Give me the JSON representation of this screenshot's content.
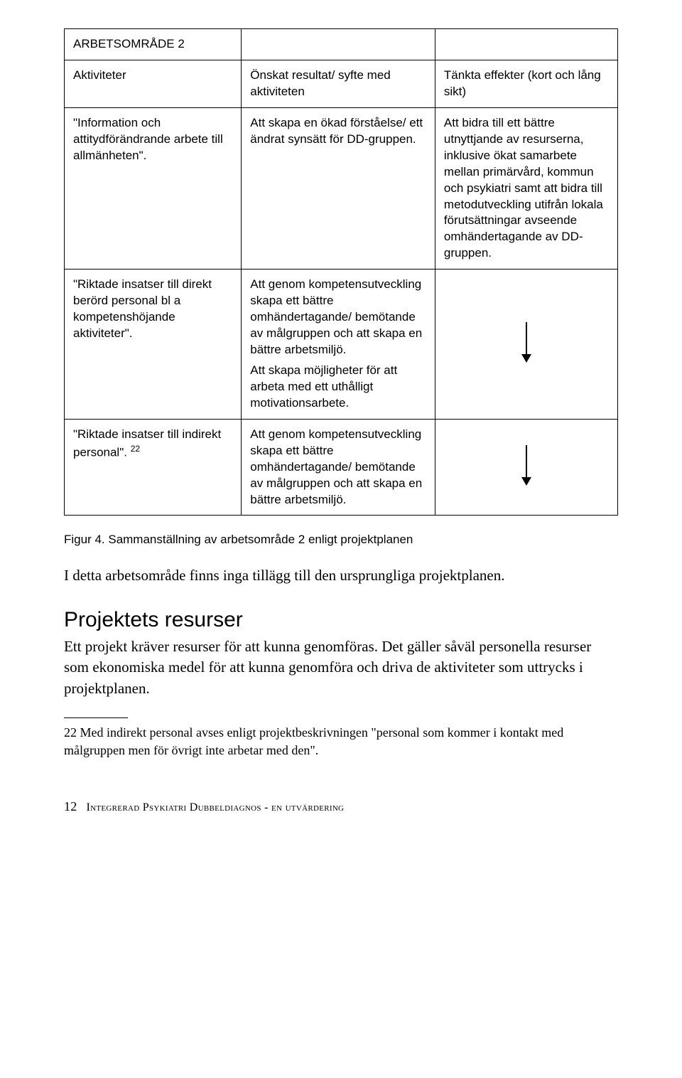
{
  "table": {
    "title": "ARBETSOMRÅDE 2",
    "headers": {
      "col1": "Aktiviteter",
      "col2": "Önskat resultat/ syfte med aktiviteten",
      "col3": "Tänkta effekter (kort och lång sikt)"
    },
    "rows": [
      {
        "col1": "\"Information och attitydförändrande arbete till allmänheten\".",
        "col2": "Att skapa en ökad förståelse/ ett ändrat synsätt för DD-gruppen.",
        "col3": "Att bidra till ett bättre utnyttjande av resurserna, inklusive ökat samarbete mellan primärvård, kommun och psykiatri samt att bidra till metodutveckling utifrån lokala förutsättningar avseende omhändertagande av DD-gruppen."
      },
      {
        "col1": "\"Riktade insatser till direkt berörd personal bl a kompetenshöjande aktiviteter\".",
        "col2_p1": "Att genom kompetensutveckling skapa ett bättre omhändertagande/ bemötande av målgruppen och att skapa en bättre arbetsmiljö.",
        "col2_p2": "Att skapa möjligheter för att arbeta med ett uthålligt motivationsarbete.",
        "col3_type": "arrow"
      },
      {
        "col1_text": "\"Riktade insatser till indirekt personal\".",
        "col1_sup": "22",
        "col2": "Att genom kompetensutveckling skapa ett bättre omhändertagande/ bemötande av målgruppen och att skapa en bättre arbetsmiljö.",
        "col3_type": "arrow"
      }
    ]
  },
  "figure_caption": "Figur 4. Sammanställning av arbetsområde 2 enligt projektplanen",
  "intro_para": "I detta arbetsområde finns inga tillägg till den ursprungliga projektplanen.",
  "section_heading": "Projektets resurser",
  "section_para": "Ett projekt kräver resurser för att kunna genomföras. Det gäller såväl personella resurser som ekonomiska medel för att kunna genomföra och driva de aktiviteter som uttrycks i projektplanen.",
  "footnote": "22 Med indirekt personal avses enligt projektbeskrivningen \"personal som kommer i kontakt med målgruppen men för övrigt inte arbetar med den\".",
  "footer": {
    "page_num": "12",
    "footer_text": "Integrerad Psykiatri Dubbeldiagnos - en utvärdering"
  }
}
